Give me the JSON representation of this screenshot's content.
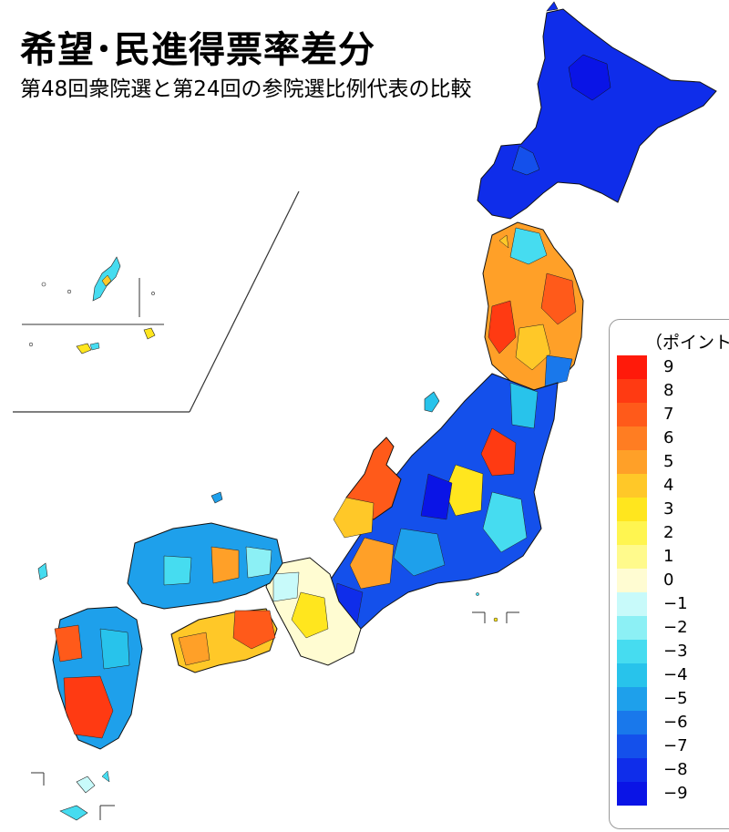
{
  "title": "希望･民進得票率差分",
  "subtitle": "第48回衆院選と第24回の参院選比例代表の比較",
  "legend": {
    "unit": "（ポイント）",
    "bins": [
      {
        "label": "9",
        "color": "#ff1a0a"
      },
      {
        "label": "8",
        "color": "#ff3a12"
      },
      {
        "label": "7",
        "color": "#ff5a1a"
      },
      {
        "label": "6",
        "color": "#ff7d22"
      },
      {
        "label": "5",
        "color": "#ffa028"
      },
      {
        "label": "4",
        "color": "#ffc828"
      },
      {
        "label": "3",
        "color": "#ffe61e"
      },
      {
        "label": "2",
        "color": "#fff550"
      },
      {
        "label": "1",
        "color": "#fffa8c"
      },
      {
        "label": "0",
        "color": "#fffcd2"
      },
      {
        "label": "−1",
        "color": "#c8fafa"
      },
      {
        "label": "−2",
        "color": "#8cf0f5"
      },
      {
        "label": "−3",
        "color": "#46dcf0"
      },
      {
        "label": "−4",
        "color": "#28c3eb"
      },
      {
        "label": "−5",
        "color": "#1ea0eb"
      },
      {
        "label": "−6",
        "color": "#1978eb"
      },
      {
        "label": "−7",
        "color": "#1450eb"
      },
      {
        "label": "−8",
        "color": "#0f2dea"
      },
      {
        "label": "−9",
        "color": "#0a14e6"
      }
    ]
  }
}
